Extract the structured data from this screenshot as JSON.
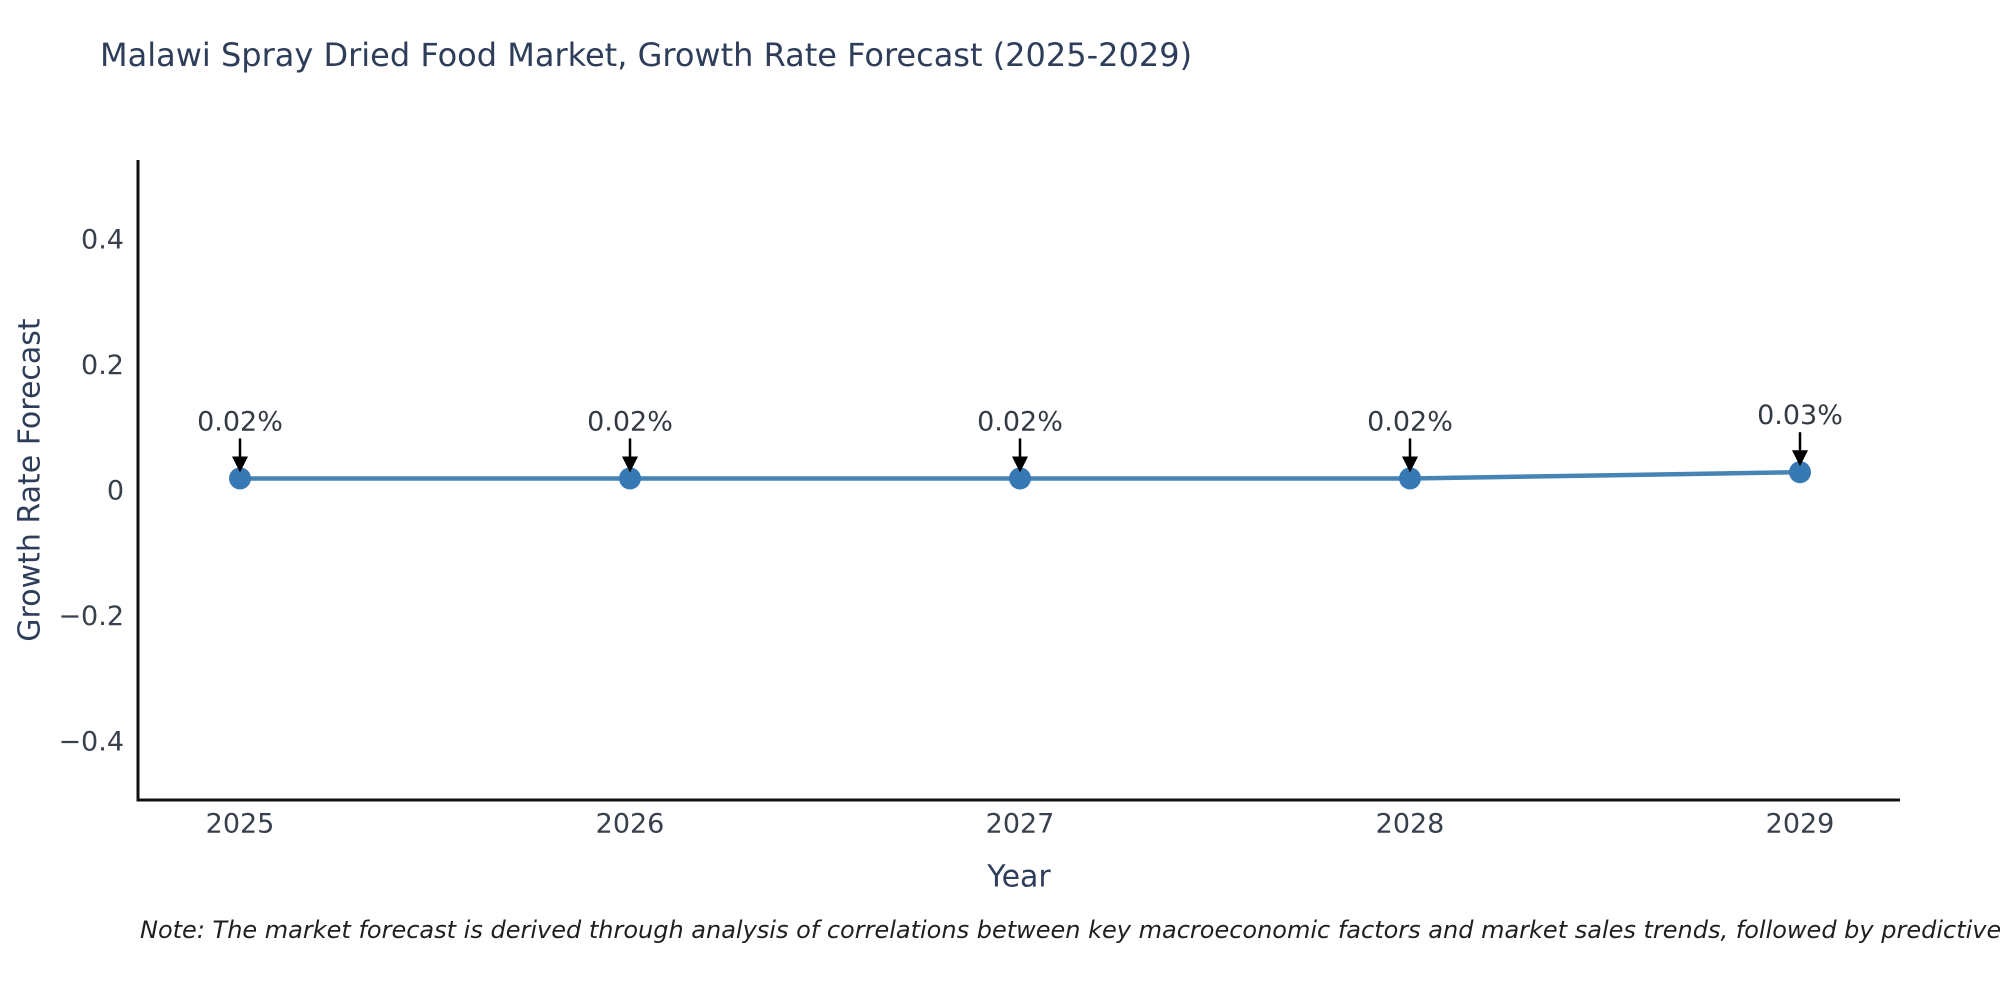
{
  "title": "Malawi Spray Dried Food Market, Growth Rate Forecast (2025-2029)",
  "note": "Note: The market forecast is derived through analysis of correlations between key macroeconomic factors and market sales trends, followed by predictive modeling to project future sales.",
  "chart_data": {
    "type": "line",
    "x": [
      2025,
      2026,
      2027,
      2028,
      2029
    ],
    "series": [
      {
        "name": "Growth Rate Forecast",
        "values": [
          0.02,
          0.02,
          0.02,
          0.02,
          0.03
        ]
      }
    ],
    "point_labels": [
      "0.02%",
      "0.02%",
      "0.02%",
      "0.02%",
      "0.03%"
    ],
    "title": "Malawi Spray Dried Food Market, Growth Rate Forecast (2025-2029)",
    "xlabel": "Year",
    "ylabel": "Growth Rate Forecast",
    "yticks": [
      0.4,
      0.2,
      0,
      -0.2,
      -0.4
    ],
    "yticklabels": [
      "0.4",
      "0.2",
      "0",
      "−0.2",
      "−0.4"
    ],
    "xticklabels": [
      "2025",
      "2026",
      "2027",
      "2028",
      "2029"
    ],
    "ylim": [
      -0.52,
      0.52
    ],
    "grid": false,
    "legend_position": "none",
    "colors": {
      "line": "#4584b4",
      "marker": "#3679b5",
      "arrow": "#000000",
      "spine": "#111111",
      "tick_text": "#38404d",
      "annotation_text": "#333a44",
      "axis_title_text": "#2e3d59"
    }
  }
}
